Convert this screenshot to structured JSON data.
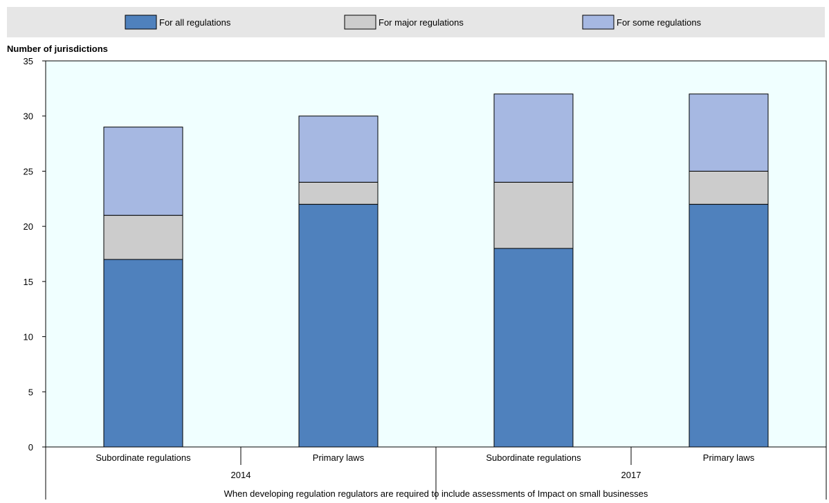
{
  "chart_data": {
    "type": "bar",
    "stacked": true,
    "ylabel": "Number of jurisdictions",
    "xlabel": "When developing regulation regulators are required to include assessments of Impact on small businesses",
    "ylim": [
      0,
      35
    ],
    "yticks": [
      0,
      5,
      10,
      15,
      20,
      25,
      30,
      35
    ],
    "grid": false,
    "legend_position": "top",
    "categories": [
      "Subordinate regulations",
      "Primary laws",
      "Subordinate regulations",
      "Primary laws"
    ],
    "groups": [
      {
        "label": "2014",
        "span": [
          0,
          1
        ]
      },
      {
        "label": "2017",
        "span": [
          2,
          3
        ]
      }
    ],
    "series": [
      {
        "name": "For all regulations",
        "color": "#4f81bd",
        "values": [
          17,
          22,
          18,
          22
        ]
      },
      {
        "name": "For major regulations",
        "color": "#cccccc",
        "values": [
          4,
          2,
          6,
          3
        ]
      },
      {
        "name": "For some regulations",
        "color": "#a6b8e2",
        "values": [
          8,
          6,
          8,
          7
        ]
      }
    ],
    "colors": {
      "plot_background": "#f0ffff",
      "legend_background": "#e6e6e6",
      "bar_border": "#000000"
    }
  }
}
